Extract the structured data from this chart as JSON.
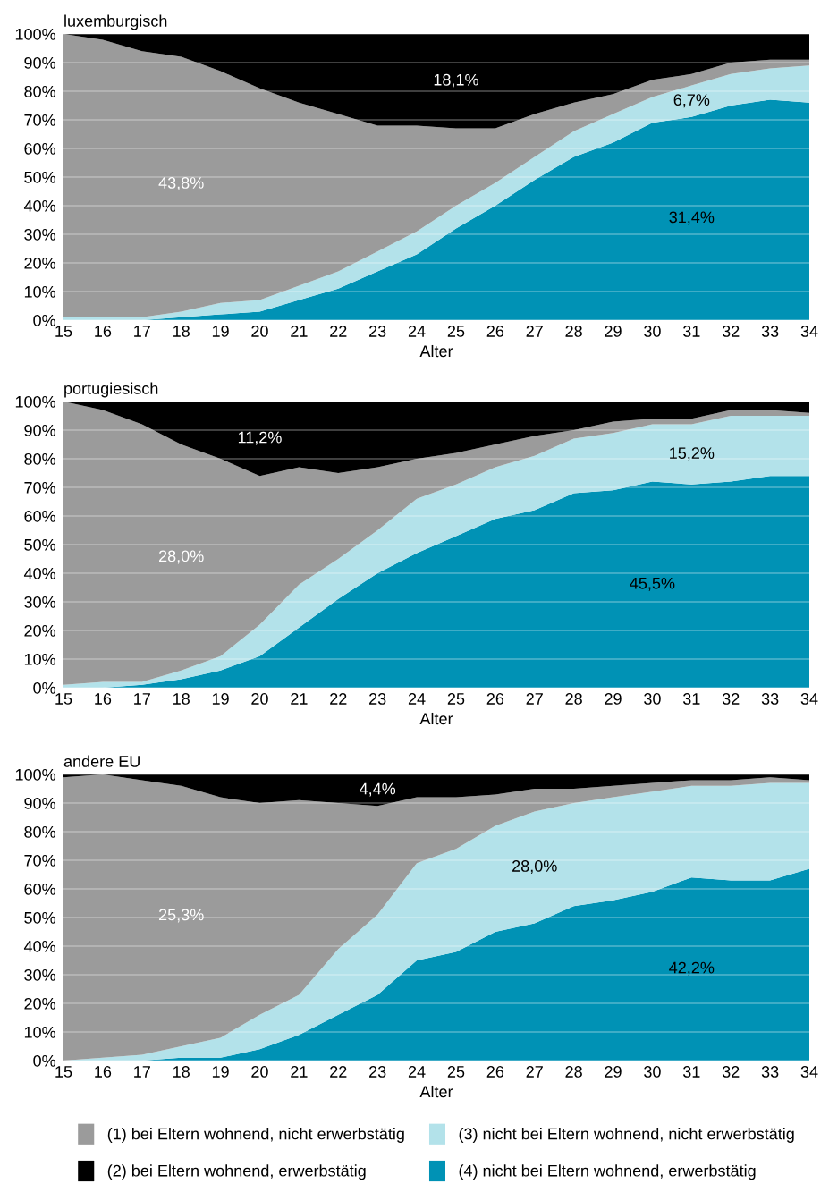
{
  "chart_data": [
    {
      "type": "area",
      "stacked": true,
      "title": "luxemburgisch",
      "xlabel": "Alter",
      "grid": "y",
      "legend": false,
      "categories": [
        "15",
        "16",
        "17",
        "18",
        "19",
        "20",
        "21",
        "22",
        "23",
        "24",
        "25",
        "26",
        "27",
        "28",
        "29",
        "30",
        "31",
        "32",
        "33",
        "34"
      ],
      "ylim": [
        0,
        100
      ],
      "yticks": [
        {
          "value": 0,
          "label": "0%"
        },
        {
          "value": 10,
          "label": "10%"
        },
        {
          "value": 20,
          "label": "20%"
        },
        {
          "value": 30,
          "label": "30%"
        },
        {
          "value": 40,
          "label": "40%"
        },
        {
          "value": 50,
          "label": "50%"
        },
        {
          "value": 60,
          "label": "60%"
        },
        {
          "value": 70,
          "label": "70%"
        },
        {
          "value": 80,
          "label": "80%"
        },
        {
          "value": 90,
          "label": "90%"
        },
        {
          "value": 100,
          "label": "100%"
        }
      ],
      "series": [
        {
          "color": "#0092b5",
          "values": [
            0,
            0,
            0,
            1,
            2,
            3,
            7,
            11,
            17,
            23,
            32,
            40,
            49,
            57,
            62,
            69,
            71,
            75,
            77,
            76
          ]
        },
        {
          "color": "#b3e2ea",
          "values": [
            1,
            1,
            1,
            2,
            4,
            4,
            5,
            6,
            7,
            8,
            8,
            8,
            8,
            9,
            10,
            9,
            11,
            11,
            11,
            13
          ]
        },
        {
          "color": "#9b9b9b",
          "values": [
            99,
            97,
            93,
            89,
            81,
            74,
            64,
            55,
            44,
            37,
            27,
            19,
            15,
            10,
            7,
            6,
            4,
            4,
            3,
            2
          ]
        },
        {
          "color": "#000000",
          "values": [
            0,
            2,
            6,
            8,
            13,
            19,
            24,
            28,
            32,
            32,
            33,
            33,
            28,
            24,
            21,
            16,
            14,
            10,
            9,
            9
          ]
        }
      ],
      "annotations": [
        "31,4%",
        "6,7%",
        "43,8%",
        "18,1%"
      ]
    },
    {
      "type": "area",
      "stacked": true,
      "title": "portugiesisch",
      "xlabel": "Alter",
      "grid": "y",
      "legend": false,
      "categories": [
        "15",
        "16",
        "17",
        "18",
        "19",
        "20",
        "21",
        "22",
        "23",
        "24",
        "25",
        "26",
        "27",
        "28",
        "29",
        "30",
        "31",
        "32",
        "33",
        "34"
      ],
      "ylim": [
        0,
        100
      ],
      "yticks": [
        {
          "value": 0,
          "label": "0%"
        },
        {
          "value": 10,
          "label": "10%"
        },
        {
          "value": 20,
          "label": "20%"
        },
        {
          "value": 30,
          "label": "30%"
        },
        {
          "value": 40,
          "label": "40%"
        },
        {
          "value": 50,
          "label": "50%"
        },
        {
          "value": 60,
          "label": "60%"
        },
        {
          "value": 70,
          "label": "70%"
        },
        {
          "value": 80,
          "label": "80%"
        },
        {
          "value": 90,
          "label": "90%"
        },
        {
          "value": 100,
          "label": "100%"
        }
      ],
      "series": [
        {
          "color": "#0092b5",
          "values": [
            0,
            0,
            1,
            3,
            6,
            11,
            21,
            31,
            40,
            47,
            53,
            59,
            62,
            68,
            69,
            72,
            71,
            72,
            74,
            74
          ]
        },
        {
          "color": "#b3e2ea",
          "values": [
            1,
            2,
            1,
            3,
            5,
            11,
            15,
            14,
            15,
            19,
            18,
            18,
            19,
            19,
            20,
            20,
            21,
            23,
            21,
            21
          ]
        },
        {
          "color": "#9b9b9b",
          "values": [
            99,
            95,
            90,
            79,
            69,
            52,
            41,
            30,
            22,
            14,
            11,
            8,
            7,
            3,
            4,
            2,
            2,
            2,
            2,
            1
          ]
        },
        {
          "color": "#000000",
          "values": [
            0,
            3,
            8,
            15,
            20,
            26,
            23,
            25,
            23,
            20,
            18,
            15,
            12,
            10,
            7,
            6,
            6,
            3,
            3,
            4
          ]
        }
      ],
      "annotations": [
        "45,5%",
        "15,2%",
        "28,0%",
        "11,2%"
      ]
    },
    {
      "type": "area",
      "stacked": true,
      "title": "andere EU",
      "xlabel": "Alter",
      "grid": "y",
      "legend": "bottom",
      "categories": [
        "15",
        "16",
        "17",
        "18",
        "19",
        "20",
        "21",
        "22",
        "23",
        "24",
        "25",
        "26",
        "27",
        "28",
        "29",
        "30",
        "31",
        "32",
        "33",
        "34"
      ],
      "ylim": [
        0,
        100
      ],
      "yticks": [
        {
          "value": 0,
          "label": "0%"
        },
        {
          "value": 10,
          "label": "10%"
        },
        {
          "value": 20,
          "label": "20%"
        },
        {
          "value": 30,
          "label": "30%"
        },
        {
          "value": 40,
          "label": "40%"
        },
        {
          "value": 50,
          "label": "50%"
        },
        {
          "value": 60,
          "label": "60%"
        },
        {
          "value": 70,
          "label": "70%"
        },
        {
          "value": 80,
          "label": "80%"
        },
        {
          "value": 90,
          "label": "90%"
        },
        {
          "value": 100,
          "label": "100%"
        }
      ],
      "series": [
        {
          "name": "(4) nicht bei Eltern wohnend, erwerbstätig",
          "color": "#0092b5",
          "values": [
            0,
            0,
            0,
            1,
            1,
            4,
            9,
            16,
            23,
            35,
            38,
            45,
            48,
            54,
            56,
            59,
            64,
            63,
            63,
            67
          ]
        },
        {
          "name": "(3) nicht bei Eltern wohnend, nicht erwerbstätig",
          "color": "#b3e2ea",
          "values": [
            0,
            1,
            2,
            4,
            7,
            12,
            14,
            23,
            28,
            34,
            36,
            37,
            39,
            36,
            36,
            35,
            32,
            33,
            34,
            30
          ]
        },
        {
          "name": "(1) bei Eltern wohnend, nicht erwerbstätig",
          "color": "#9b9b9b",
          "values": [
            99,
            99,
            96,
            91,
            84,
            74,
            68,
            51,
            38,
            23,
            18,
            11,
            8,
            5,
            4,
            3,
            2,
            2,
            2,
            1
          ]
        },
        {
          "name": "(2) bei Eltern wohnend, erwerbstätig",
          "color": "#000000",
          "values": [
            1,
            0,
            2,
            4,
            8,
            10,
            9,
            10,
            11,
            8,
            8,
            7,
            5,
            5,
            4,
            3,
            2,
            2,
            1,
            2
          ]
        }
      ],
      "annotations": [
        "42,2%",
        "28,0%",
        "25,3%",
        "4,4%"
      ]
    }
  ]
}
